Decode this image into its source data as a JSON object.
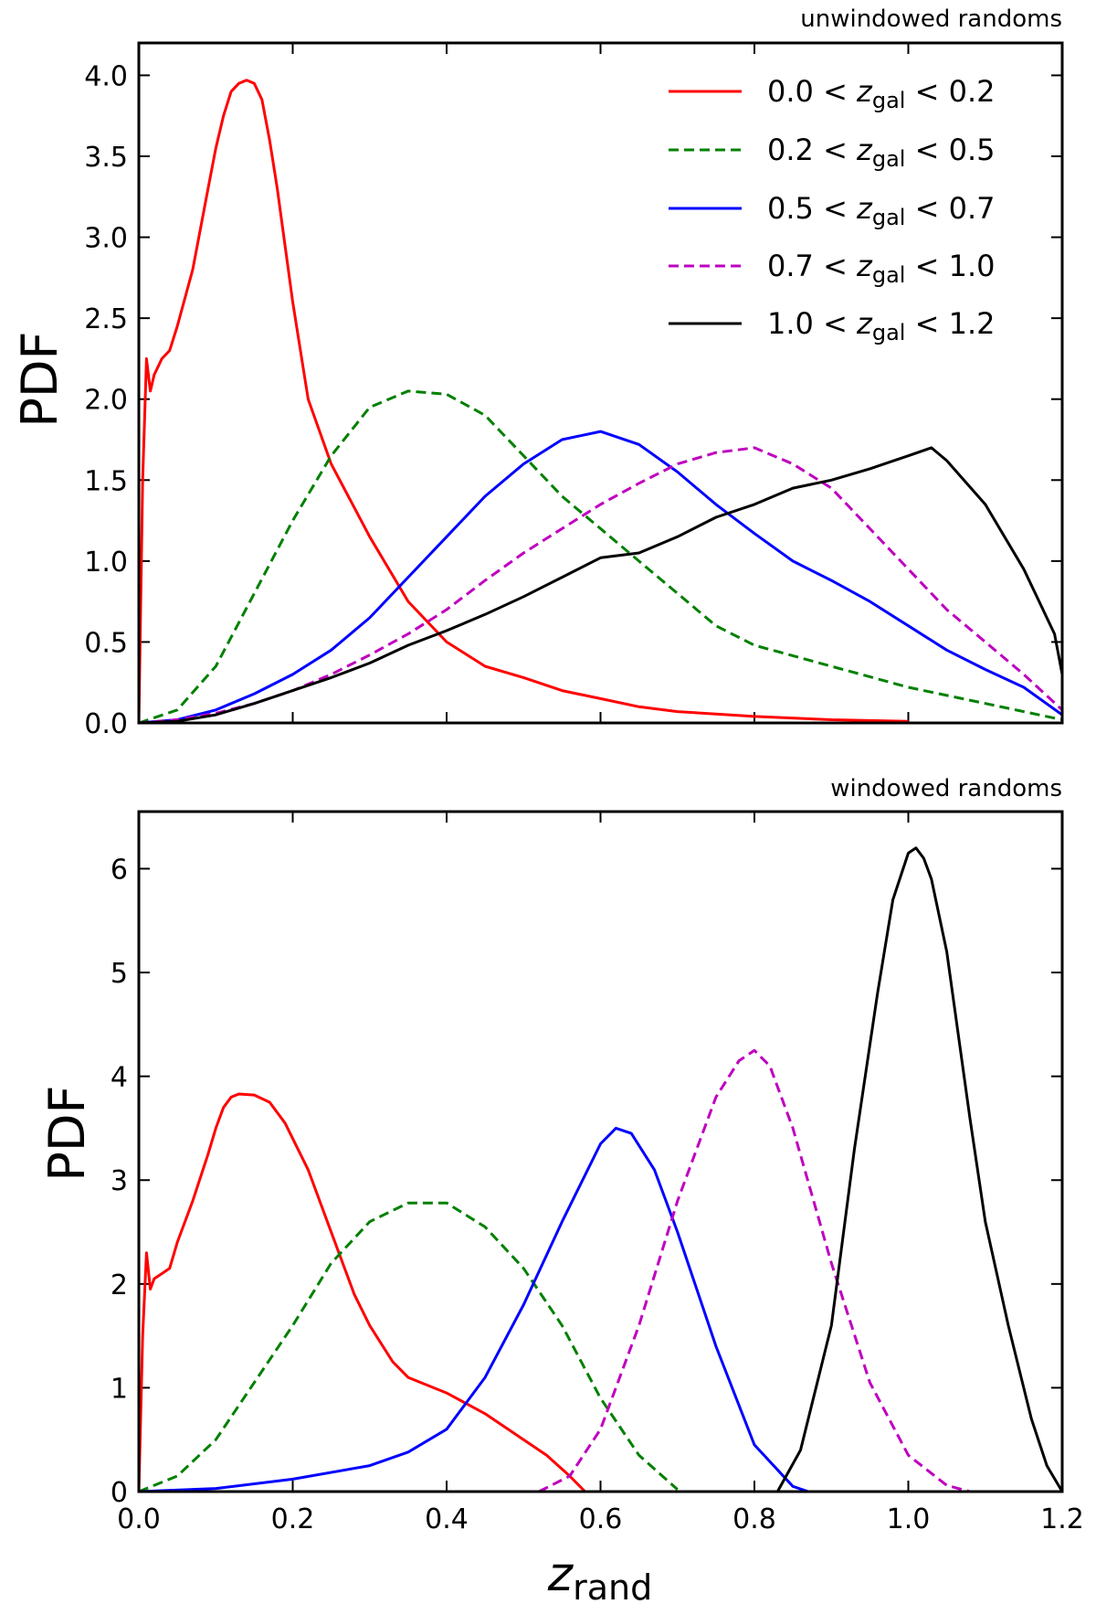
{
  "figure": {
    "xlabel_main": "z",
    "xlabel_sub": "rand"
  },
  "chart_data": [
    {
      "type": "line",
      "title": "unwindowed randoms",
      "xlabel": "z_rand",
      "ylabel": "PDF",
      "xlim": [
        0.0,
        1.2
      ],
      "ylim": [
        0.0,
        4.2
      ],
      "xticks": [
        0.0,
        0.2,
        0.4,
        0.6,
        0.8,
        1.0,
        1.2
      ],
      "yticks": [
        0.0,
        0.5,
        1.0,
        1.5,
        2.0,
        2.5,
        3.0,
        3.5,
        4.0
      ],
      "ytick_labels": [
        "0.0",
        "0.5",
        "1.0",
        "1.5",
        "2.0",
        "2.5",
        "3.0",
        "3.5",
        "4.0"
      ],
      "xtick_labels": [
        "",
        "",
        "",
        "",
        "",
        "",
        ""
      ],
      "legend_position": "top-right",
      "series": [
        {
          "name": "0.0 < z_gal < 0.2",
          "legend_pre": "0.0 <",
          "legend_var": "z",
          "legend_sub": "gal",
          "legend_post": "< 0.2",
          "color": "#ff0000",
          "style": "solid",
          "x": [
            0.0,
            0.005,
            0.01,
            0.015,
            0.02,
            0.03,
            0.04,
            0.05,
            0.07,
            0.09,
            0.1,
            0.11,
            0.12,
            0.13,
            0.14,
            0.15,
            0.16,
            0.17,
            0.18,
            0.2,
            0.22,
            0.25,
            0.3,
            0.35,
            0.4,
            0.45,
            0.5,
            0.55,
            0.6,
            0.65,
            0.7,
            0.8,
            0.9,
            1.0
          ],
          "y": [
            0.0,
            1.5,
            2.25,
            2.05,
            2.15,
            2.25,
            2.3,
            2.45,
            2.8,
            3.3,
            3.55,
            3.75,
            3.9,
            3.95,
            3.97,
            3.95,
            3.85,
            3.6,
            3.3,
            2.6,
            2.0,
            1.6,
            1.15,
            0.75,
            0.5,
            0.35,
            0.28,
            0.2,
            0.15,
            0.1,
            0.07,
            0.04,
            0.02,
            0.01
          ]
        },
        {
          "name": "0.2 < z_gal < 0.5",
          "legend_pre": "0.2 <",
          "legend_var": "z",
          "legend_sub": "gal",
          "legend_post": "< 0.5",
          "color": "#008000",
          "style": "dashed",
          "x": [
            0.0,
            0.05,
            0.1,
            0.15,
            0.2,
            0.25,
            0.3,
            0.35,
            0.4,
            0.45,
            0.5,
            0.55,
            0.6,
            0.65,
            0.7,
            0.75,
            0.8,
            0.9,
            1.0,
            1.1,
            1.2
          ],
          "y": [
            0.0,
            0.08,
            0.35,
            0.8,
            1.25,
            1.65,
            1.95,
            2.05,
            2.03,
            1.9,
            1.65,
            1.4,
            1.2,
            1.0,
            0.8,
            0.6,
            0.48,
            0.35,
            0.22,
            0.12,
            0.02
          ]
        },
        {
          "name": "0.5 < z_gal < 0.7",
          "legend_pre": "0.5 <",
          "legend_var": "z",
          "legend_sub": "gal",
          "legend_post": "< 0.7",
          "color": "#0000ff",
          "style": "solid",
          "x": [
            0.0,
            0.05,
            0.1,
            0.15,
            0.2,
            0.25,
            0.3,
            0.35,
            0.4,
            0.45,
            0.5,
            0.55,
            0.6,
            0.65,
            0.7,
            0.75,
            0.8,
            0.85,
            0.9,
            0.95,
            1.0,
            1.05,
            1.1,
            1.15,
            1.2
          ],
          "y": [
            0.0,
            0.02,
            0.08,
            0.18,
            0.3,
            0.45,
            0.65,
            0.9,
            1.15,
            1.4,
            1.6,
            1.75,
            1.8,
            1.72,
            1.55,
            1.35,
            1.17,
            1.0,
            0.88,
            0.75,
            0.6,
            0.45,
            0.33,
            0.22,
            0.05
          ]
        },
        {
          "name": "0.7 < z_gal < 1.0",
          "legend_pre": "0.7 <",
          "legend_var": "z",
          "legend_sub": "gal",
          "legend_post": "< 1.0",
          "color": "#bf00bf",
          "style": "dashed",
          "x": [
            0.0,
            0.05,
            0.1,
            0.15,
            0.2,
            0.25,
            0.3,
            0.35,
            0.4,
            0.45,
            0.5,
            0.55,
            0.6,
            0.65,
            0.7,
            0.75,
            0.8,
            0.85,
            0.9,
            0.95,
            1.0,
            1.05,
            1.1,
            1.15,
            1.2
          ],
          "y": [
            0.0,
            0.02,
            0.06,
            0.12,
            0.2,
            0.3,
            0.42,
            0.55,
            0.7,
            0.88,
            1.05,
            1.2,
            1.35,
            1.48,
            1.6,
            1.67,
            1.7,
            1.6,
            1.45,
            1.2,
            0.95,
            0.7,
            0.5,
            0.3,
            0.08
          ]
        },
        {
          "name": "1.0 < z_gal < 1.2",
          "legend_pre": "1.0 <",
          "legend_var": "z",
          "legend_sub": "gal",
          "legend_post": "< 1.2",
          "color": "#000000",
          "style": "solid",
          "x": [
            0.0,
            0.05,
            0.1,
            0.15,
            0.2,
            0.25,
            0.3,
            0.35,
            0.4,
            0.45,
            0.5,
            0.55,
            0.6,
            0.65,
            0.7,
            0.75,
            0.8,
            0.85,
            0.9,
            0.95,
            1.0,
            1.03,
            1.05,
            1.1,
            1.15,
            1.19,
            1.2
          ],
          "y": [
            0.0,
            0.01,
            0.05,
            0.12,
            0.2,
            0.28,
            0.37,
            0.48,
            0.57,
            0.67,
            0.78,
            0.9,
            1.02,
            1.05,
            1.15,
            1.27,
            1.35,
            1.45,
            1.5,
            1.57,
            1.65,
            1.7,
            1.62,
            1.35,
            0.95,
            0.55,
            0.3
          ]
        }
      ]
    },
    {
      "type": "line",
      "title": "windowed randoms",
      "xlabel": "z_rand",
      "ylabel": "PDF",
      "xlim": [
        0.0,
        1.2
      ],
      "ylim": [
        0.0,
        6.55
      ],
      "xticks": [
        0.0,
        0.2,
        0.4,
        0.6,
        0.8,
        1.0,
        1.2
      ],
      "xtick_labels": [
        "0.0",
        "0.2",
        "0.4",
        "0.6",
        "0.8",
        "1.0",
        "1.2"
      ],
      "yticks": [
        0,
        1,
        2,
        3,
        4,
        5,
        6
      ],
      "ytick_labels": [
        "0",
        "1",
        "2",
        "3",
        "4",
        "5",
        "6"
      ],
      "series": [
        {
          "name": "0.0 < z_gal < 0.2",
          "color": "#ff0000",
          "style": "solid",
          "x": [
            0.0,
            0.005,
            0.01,
            0.015,
            0.02,
            0.03,
            0.04,
            0.05,
            0.07,
            0.09,
            0.1,
            0.11,
            0.12,
            0.13,
            0.15,
            0.17,
            0.19,
            0.22,
            0.25,
            0.28,
            0.3,
            0.33,
            0.35,
            0.4,
            0.45,
            0.5,
            0.53,
            0.56,
            0.58
          ],
          "y": [
            0.0,
            1.5,
            2.3,
            1.95,
            2.05,
            2.1,
            2.15,
            2.4,
            2.8,
            3.25,
            3.5,
            3.7,
            3.8,
            3.83,
            3.82,
            3.75,
            3.55,
            3.1,
            2.5,
            1.9,
            1.6,
            1.25,
            1.1,
            0.95,
            0.75,
            0.5,
            0.35,
            0.15,
            0.0
          ]
        },
        {
          "name": "0.2 < z_gal < 0.5",
          "color": "#008000",
          "style": "dashed",
          "x": [
            0.0,
            0.05,
            0.1,
            0.15,
            0.2,
            0.25,
            0.3,
            0.35,
            0.4,
            0.45,
            0.5,
            0.55,
            0.6,
            0.65,
            0.7
          ],
          "y": [
            0.0,
            0.15,
            0.5,
            1.05,
            1.6,
            2.2,
            2.6,
            2.78,
            2.78,
            2.55,
            2.15,
            1.6,
            0.9,
            0.35,
            0.02
          ]
        },
        {
          "name": "0.5 < z_gal < 0.7",
          "color": "#0000ff",
          "style": "solid",
          "x": [
            0.0,
            0.1,
            0.2,
            0.3,
            0.35,
            0.4,
            0.45,
            0.5,
            0.55,
            0.6,
            0.62,
            0.64,
            0.67,
            0.7,
            0.75,
            0.8,
            0.85,
            0.87
          ],
          "y": [
            0.0,
            0.03,
            0.12,
            0.25,
            0.38,
            0.6,
            1.1,
            1.8,
            2.6,
            3.35,
            3.5,
            3.45,
            3.1,
            2.5,
            1.4,
            0.45,
            0.05,
            0.0
          ]
        },
        {
          "name": "0.7 < z_gal < 1.0",
          "color": "#bf00bf",
          "style": "dashed",
          "x": [
            0.52,
            0.56,
            0.6,
            0.65,
            0.7,
            0.75,
            0.78,
            0.8,
            0.82,
            0.85,
            0.9,
            0.95,
            1.0,
            1.05,
            1.08
          ],
          "y": [
            0.0,
            0.15,
            0.6,
            1.6,
            2.8,
            3.8,
            4.15,
            4.25,
            4.1,
            3.5,
            2.2,
            1.05,
            0.35,
            0.06,
            0.0
          ]
        },
        {
          "name": "1.0 < z_gal < 1.2",
          "color": "#000000",
          "style": "solid",
          "x": [
            0.83,
            0.86,
            0.9,
            0.93,
            0.96,
            0.98,
            1.0,
            1.01,
            1.02,
            1.03,
            1.05,
            1.08,
            1.1,
            1.13,
            1.16,
            1.18,
            1.2
          ],
          "y": [
            0.0,
            0.4,
            1.6,
            3.3,
            4.8,
            5.7,
            6.15,
            6.2,
            6.1,
            5.9,
            5.2,
            3.6,
            2.6,
            1.6,
            0.7,
            0.25,
            0.0
          ]
        }
      ]
    }
  ]
}
